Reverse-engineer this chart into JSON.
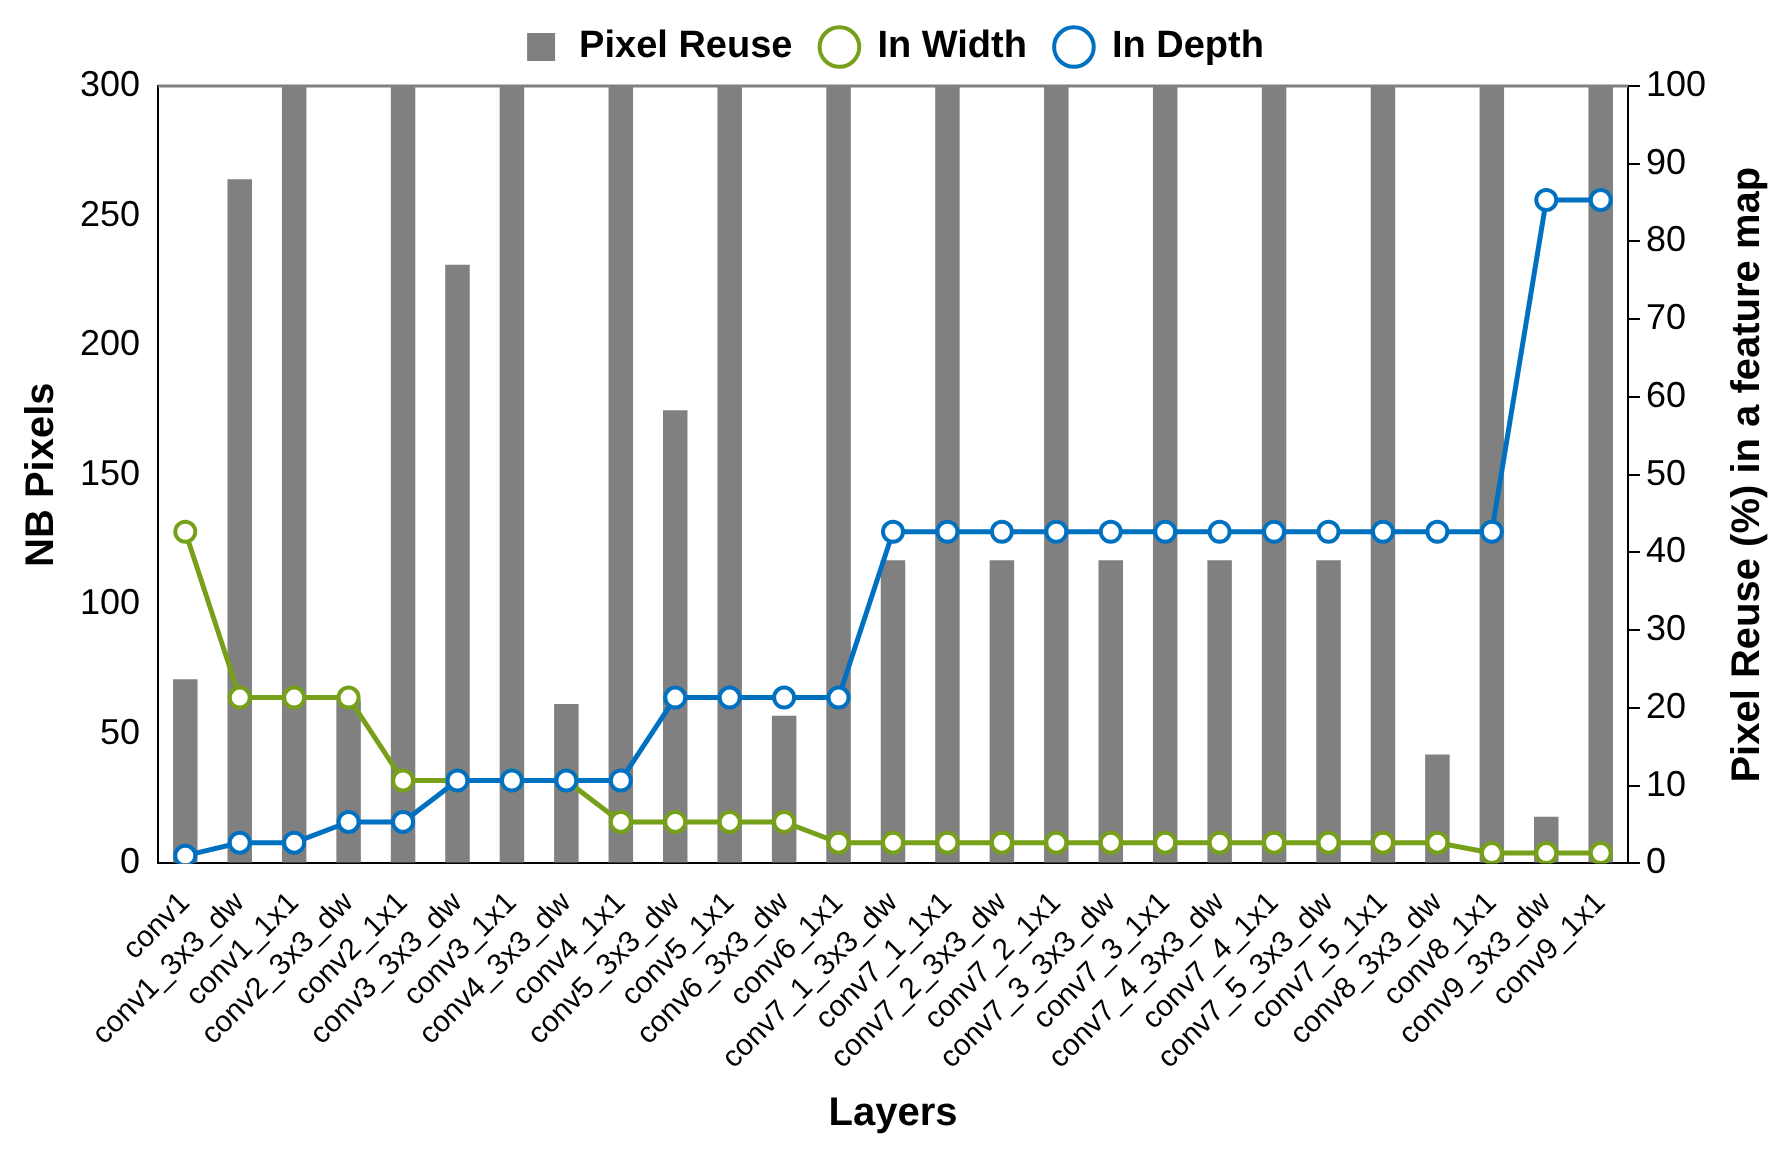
{
  "chart_data": {
    "type": "bar",
    "xlabel": "Layers",
    "ylabel": "NB Pixels",
    "y2label": "Pixel Reuse (%) in a feature map",
    "categories": [
      "conv1",
      "conv1_3x3_dw",
      "conv1_1x1",
      "conv2_3x3_dw",
      "conv2_1x1",
      "conv3_3x3_dw",
      "conv3_1x1",
      "conv4_3x3_dw",
      "conv4_1x1",
      "conv5_3x3_dw",
      "conv5_1x1",
      "conv6_3x3_dw",
      "conv6_1x1",
      "conv7_1_3x3_dw",
      "conv7_1_1x1",
      "conv7_2_3x3_dw",
      "conv7_2_1x1",
      "conv7_3_3x3_dw",
      "conv7_3_1x1",
      "conv7_4_3x3_dw",
      "conv7_4_1x1",
      "conv7_5_3x3_dw",
      "conv7_5_1x1",
      "conv8_3x3_dw",
      "conv8_1x1",
      "conv9_3x3_dw",
      "conv9_1x1"
    ],
    "series": [
      {
        "name": "Pixel Reuse",
        "axis": "y2",
        "color": "#808080",
        "values": [
          23.7,
          88,
          100,
          21,
          100,
          77,
          100,
          20.5,
          100,
          58.3,
          100,
          19,
          100,
          39,
          100,
          39,
          100,
          39,
          100,
          39,
          100,
          39,
          100,
          14,
          100,
          6,
          100
        ]
      },
      {
        "name": "In Width",
        "type": "line",
        "color": "#77a01a",
        "values": [
          128,
          64,
          64,
          64,
          32,
          32,
          32,
          32,
          16,
          16,
          16,
          16,
          8,
          8,
          8,
          8,
          8,
          8,
          8,
          8,
          8,
          8,
          8,
          8,
          4,
          4,
          4
        ]
      },
      {
        "name": "In Depth",
        "type": "line",
        "color": "#0070c0",
        "values": [
          3,
          8,
          8,
          16,
          16,
          32,
          32,
          32,
          32,
          64,
          64,
          64,
          64,
          128,
          128,
          128,
          128,
          128,
          128,
          128,
          128,
          128,
          128,
          128,
          128,
          256,
          256
        ]
      }
    ],
    "ylim": [
      0,
      300
    ],
    "yticks": [
      0,
      50,
      100,
      150,
      200,
      250,
      300
    ],
    "y2lim": [
      0,
      100
    ],
    "y2ticks": [
      0,
      10,
      20,
      30,
      40,
      50,
      60,
      70,
      80,
      90,
      100
    ],
    "legend": "top",
    "grid": false,
    "marker": "circle",
    "line_style": "solid"
  }
}
